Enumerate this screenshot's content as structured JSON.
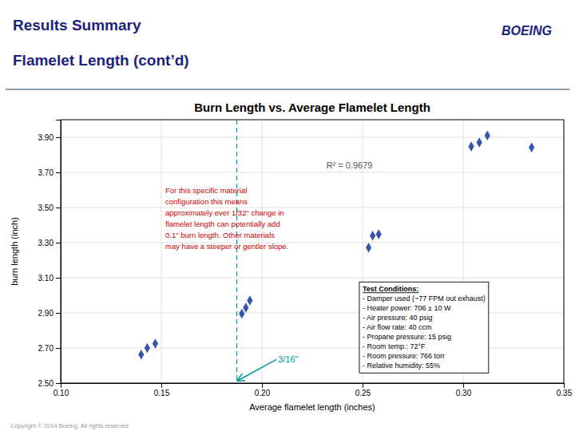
{
  "chart_data": {
    "type": "scatter",
    "header": {
      "lines": [
        "Results Summary",
        "Flamelet Length (cont’d)"
      ],
      "color": "#1a237e"
    },
    "logo": {
      "text": "BOEING",
      "color": "#1a237e"
    },
    "title": "Burn Length vs. Average Flamelet Length",
    "x_label": "Average flamelet length (inches)",
    "y_label": "burn length (inch)",
    "xlim": [
      0.1,
      0.35
    ],
    "ylim": [
      2.5,
      4.0
    ],
    "xticks": [
      {
        "value": 0.1,
        "label": "0.10"
      },
      0.15,
      {
        "value": 0.2,
        "label": "0.20"
      },
      0.25,
      {
        "value": 0.3,
        "label": "0.30"
      },
      0.35
    ],
    "yticks": [
      {
        "value": 2.5,
        "label": "2.50"
      },
      {
        "value": 2.7,
        "label": "2.70"
      },
      {
        "value": 2.9,
        "label": "2.90"
      },
      {
        "value": 3.1,
        "label": "3.10"
      },
      {
        "value": 3.3,
        "label": "3.30"
      },
      {
        "value": 3.5,
        "label": "3.50"
      },
      {
        "value": 3.7,
        "label": "3.70"
      },
      {
        "value": 3.9,
        "label": "3.90"
      }
    ],
    "grid": true,
    "x": [
      0.14,
      0.143,
      0.147,
      0.19,
      0.192,
      0.194,
      0.253,
      0.255,
      0.258,
      0.304,
      0.308,
      0.312,
      0.334
    ],
    "values": [
      2.663,
      2.7,
      2.725,
      2.895,
      2.93,
      2.97,
      3.272,
      3.34,
      3.348,
      3.848,
      3.87,
      3.91,
      3.842
    ],
    "color": "#3355aa",
    "marker": "diamond",
    "vline": {
      "x": 0.1875,
      "label": "3/16\"",
      "color": "#009999",
      "line_style": "dashed"
    },
    "r2_text": "R² = 0.9679",
    "note": {
      "lines": [
        "For this specific material",
        "configuration this means",
        "approximately ever 1/32\" change in",
        "flamelet length can potentially add",
        "0.1\" burn length. Other materials",
        "may have a steeper or gentler slope."
      ],
      "color": "#cc0000"
    },
    "test_conditions": {
      "title": "Test Conditions:",
      "lines": [
        "- Damper used (~77 FPM out exhaust)",
        "- Heater power: 706 ± 10 W",
        "- Air pressure: 40 psig",
        "- Air flow rate: 40 ccm",
        "- Propane pressure: 15 psig",
        "- Room temp.: 72°F",
        "- Room pressure: 766 torr",
        "- Relative humidity: 55%"
      ]
    },
    "footer": "Copyright © 2014 Boeing. All rights reserved."
  }
}
